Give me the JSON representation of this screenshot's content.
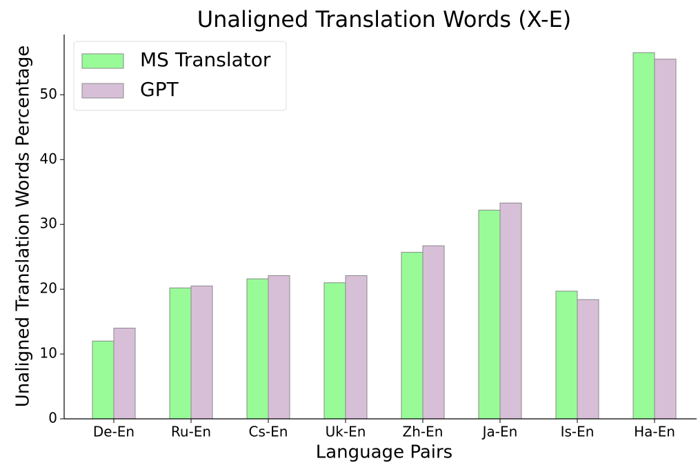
{
  "chart_data": {
    "type": "bar",
    "title": "Unaligned Translation Words (X-E)",
    "xlabel": "Language Pairs",
    "ylabel": "Unaligned Translation Words Percentage",
    "categories": [
      "De-En",
      "Ru-En",
      "Cs-En",
      "Uk-En",
      "Zh-En",
      "Ja-En",
      "Is-En",
      "Ha-En"
    ],
    "series": [
      {
        "name": "MS Translator",
        "color": "#98fb98",
        "values": [
          12.0,
          20.2,
          21.6,
          21.0,
          25.7,
          32.2,
          19.7,
          56.5
        ]
      },
      {
        "name": "GPT",
        "color": "#d8bfd8",
        "values": [
          14.0,
          20.5,
          22.1,
          22.1,
          26.7,
          33.3,
          18.4,
          55.5
        ]
      }
    ],
    "ylim": [
      0,
      59.3
    ],
    "yticks": [
      0,
      10,
      20,
      30,
      40,
      50
    ],
    "legend": "upper left"
  }
}
